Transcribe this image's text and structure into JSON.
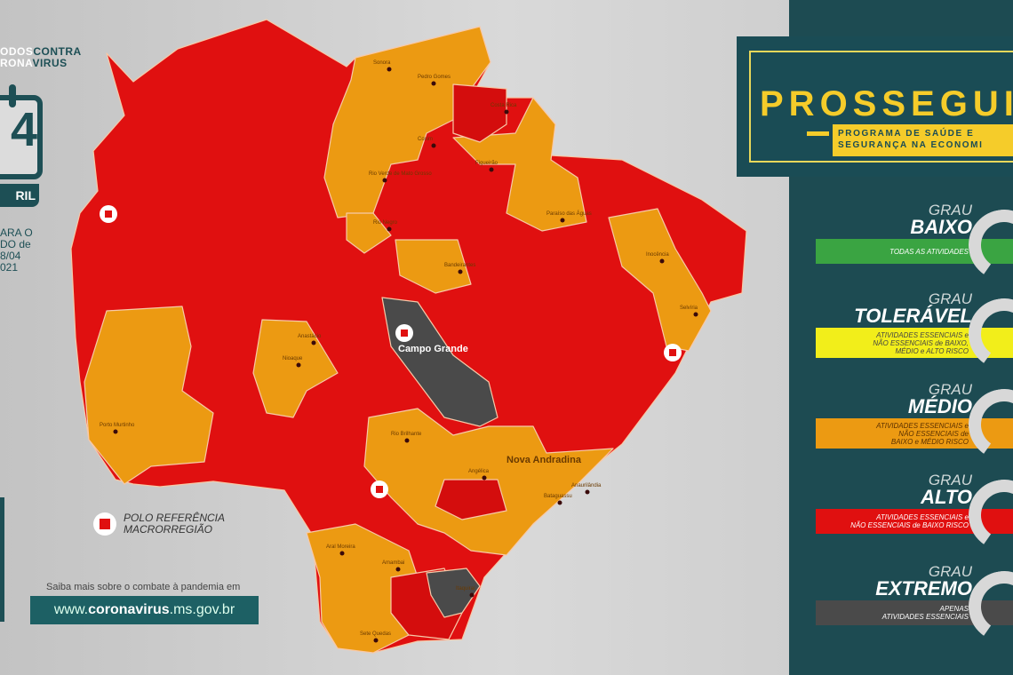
{
  "brand": {
    "line1_light": "ODOS",
    "line1_dark": "CONTRA",
    "line2_light": "RONA",
    "line2_dark": "VIRUS"
  },
  "calendar": {
    "day": "4",
    "month": "RIL",
    "icon": "calendar-icon"
  },
  "period": {
    "line1": "ARA O",
    "line2": "DO de",
    "line3": "8/04",
    "line4": "021"
  },
  "map": {
    "colors": {
      "extremo": "#4a4a4a",
      "alto": "#e01010",
      "medio": "#ec9a12",
      "outline": "#f7c9a8"
    },
    "highlight_cities": [
      "Campo Grande",
      "Nova Andradina"
    ],
    "cities": [
      "Sonora",
      "Pedro Gomes",
      "Coxim",
      "Costa Rica",
      "Figueirão",
      "Rio Verde de Mato Grosso",
      "Paraíso das Águas",
      "Rio Negro",
      "Bandeirantes",
      "Inocência",
      "Selvíria",
      "Anastácio",
      "Nioaque",
      "Porto Murtinho",
      "Rio Brilhante",
      "Angélica",
      "Anaurilândia",
      "Bataguassu",
      "Aral Moreira",
      "Amambai",
      "Itaquiraí",
      "Sete Quedas"
    ],
    "polo_icon": "medical-cross-icon"
  },
  "legend": {
    "line1": "POLO REFERÊNCIA",
    "line2": "MACRORREGIÃO"
  },
  "footer": {
    "saiba": "Saiba mais sobre o combate à pandemia em",
    "site_prefix": "www.",
    "site_bold": "coronavirus",
    "site_suffix": ".ms.gov.br"
  },
  "program": {
    "title": "PROSSEGUI",
    "sub1": "PROGRAMA DE SAÚDE E",
    "sub2": "SEGURANÇA NA ECONOMI"
  },
  "levels": [
    {
      "grau": "GRAU",
      "name": "BAIXO",
      "desc": [
        "TODAS AS ATIVIDADES"
      ],
      "color": "#3aa442",
      "text": "#ffffff"
    },
    {
      "grau": "GRAU",
      "name": "TOLERÁVEL",
      "desc": [
        "ATIVIDADES ESSENCIAIS e",
        "NÃO ESSENCIAIS de BAIXO,",
        "MÉDIO e ALTO RISCO"
      ],
      "color": "#f2ee1a",
      "text": "#444444"
    },
    {
      "grau": "GRAU",
      "name": "MÉDIO",
      "desc": [
        "ATIVIDADES ESSENCIAIS e",
        "NÃO ESSENCIAIS de",
        "BAIXO e MÉDIO RISCO"
      ],
      "color": "#ec9a12",
      "text": "#5a3000"
    },
    {
      "grau": "GRAU",
      "name": "ALTO",
      "desc": [
        "ATIVIDADES ESSENCIAIS e",
        "NÃO ESSENCIAIS de BAIXO RISCO"
      ],
      "color": "#e01010",
      "text": "#ffffff"
    },
    {
      "grau": "GRAU",
      "name": "EXTREMO",
      "desc": [
        "APENAS",
        "ATIVIDADES ESSENCIAIS"
      ],
      "color": "#4a4a4a",
      "text": "#ffffff"
    }
  ]
}
